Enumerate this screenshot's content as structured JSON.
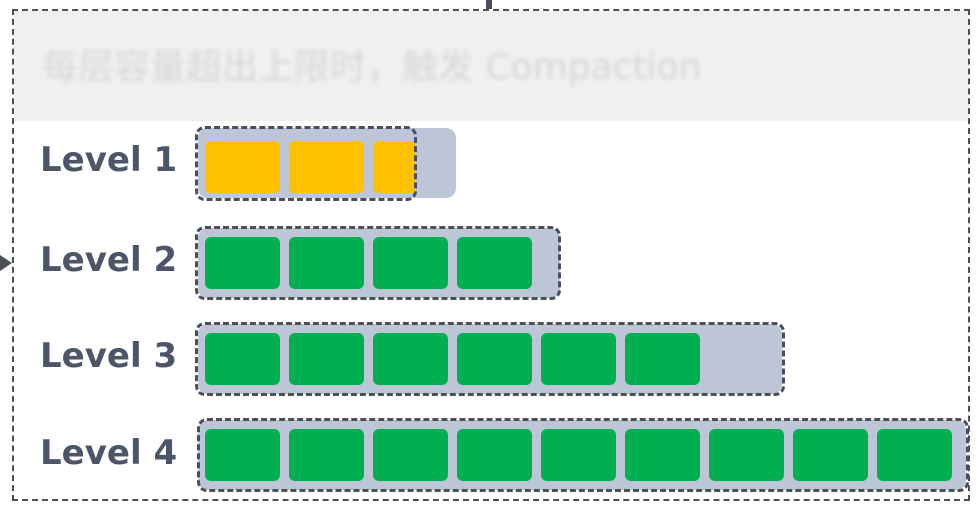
{
  "caption": "每层容量超出上限时，触发 Compaction",
  "colors": {
    "level1_block": "#ffc000",
    "level_block": "#00b050",
    "track": "#bcc6d6",
    "outline": "#4a4f5a",
    "label": "#4d5669"
  },
  "levels": [
    {
      "label": "Level 1",
      "block_count": 3,
      "last_block_partial": true,
      "block_color": "#ffc000"
    },
    {
      "label": "Level 2",
      "block_count": 4,
      "last_block_partial": false,
      "block_color": "#00b050"
    },
    {
      "label": "Level 3",
      "block_count": 6,
      "last_block_partial": false,
      "block_color": "#00b050"
    },
    {
      "label": "Level 4",
      "block_count": 9,
      "last_block_partial": false,
      "block_color": "#00b050"
    }
  ]
}
